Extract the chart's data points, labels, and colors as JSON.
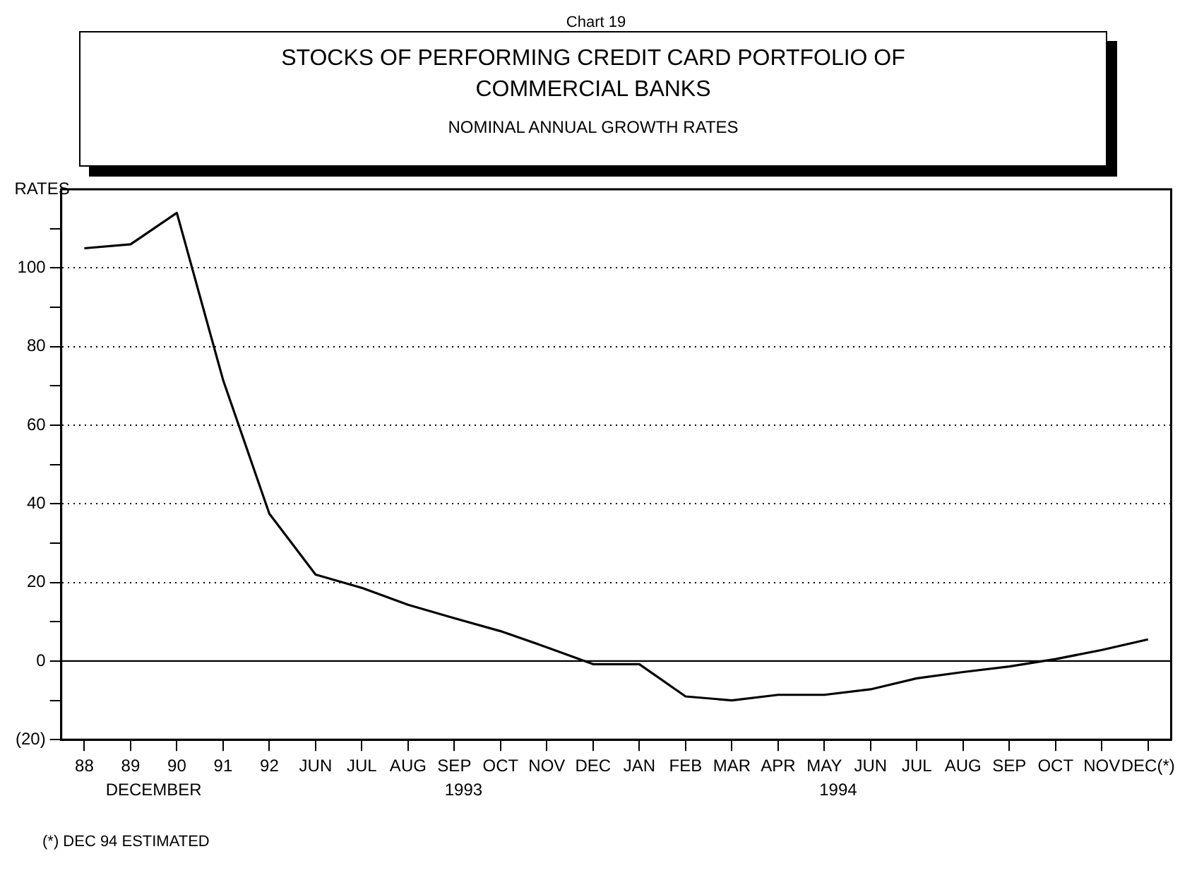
{
  "chart_data": {
    "type": "line",
    "title": "STOCKS OF PERFORMING CREDIT CARD PORTFOLIO OF COMMERCIAL BANKS",
    "subtitle": "NOMINAL ANNUAL GROWTH RATES",
    "ylabel": "RATES",
    "annotations": [
      "Chart 19",
      "DECEMBER",
      "1993",
      "1994",
      "(*) DEC 94 ESTIMATED"
    ],
    "categories": [
      "88",
      "89",
      "90",
      "91",
      "92",
      "JUN",
      "JUL",
      "AUG",
      "SEP",
      "OCT",
      "NOV",
      "DEC",
      "JAN",
      "FEB",
      "MAR",
      "APR",
      "MAY",
      "JUN",
      "JUL",
      "AUG",
      "SEP",
      "OCT",
      "NOV",
      "DEC(*)"
    ],
    "series": [
      {
        "color": "#000000",
        "values": [
          105,
          106,
          114,
          71.5,
          37.5,
          22,
          18.6,
          14.3,
          10.9,
          7.6,
          3.5,
          -0.8,
          -0.8,
          -9,
          -10,
          -8.6,
          -8.6,
          -7.2,
          -4.4,
          -2.8,
          -1.4,
          0.5,
          2.8,
          5.5
        ]
      }
    ],
    "ylim": [
      -20,
      120
    ],
    "yticks": [
      {
        "value": -20,
        "label": "(20)"
      },
      {
        "value": -10,
        "label": null
      },
      0,
      {
        "value": 10,
        "label": null
      },
      20,
      {
        "value": 30,
        "label": null
      },
      40,
      {
        "value": 50,
        "label": null
      },
      60,
      {
        "value": 70,
        "label": null
      },
      80,
      {
        "value": 90,
        "label": null
      },
      100,
      {
        "value": 110,
        "label": null
      }
    ],
    "grid": "y",
    "line_style": "solid",
    "marker": "none",
    "legend": false,
    "ref_lines": [
      {
        "axis": "y",
        "value": 0,
        "color": "#000000",
        "line_style": "solid"
      }
    ]
  }
}
